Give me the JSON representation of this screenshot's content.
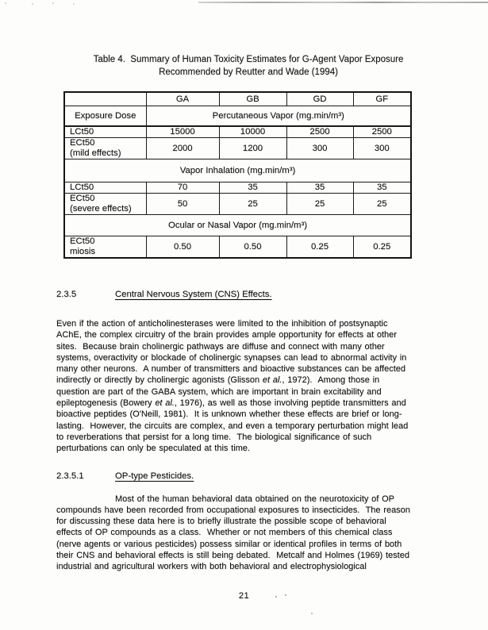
{
  "document": {
    "page_number": "21",
    "table": {
      "title": {
        "line1": "Table 4.  Summary of Human Toxicity Estimates for G-Agent Vapor Exposure",
        "line2": "Recommended by Reutter and Wade (1994)"
      },
      "corner_label": "",
      "agent_columns": [
        "GA",
        "GB",
        "GD",
        "GF"
      ],
      "row_header_label": "Exposure Dose",
      "sections": [
        {
          "span_header": "Percutaneous Vapor (mg.min/m³)",
          "rows": [
            {
              "label": "LCt50",
              "values": [
                "15000",
                "10000",
                "2500",
                "2500"
              ]
            },
            {
              "label": "ECt50\n(mild effects)",
              "values": [
                "2000",
                "1200",
                "300",
                "300"
              ]
            }
          ]
        },
        {
          "span_header": "Vapor Inhalation (mg.min/m³)",
          "rows": [
            {
              "label": "LCt50",
              "values": [
                "70",
                "35",
                "35",
                "35"
              ]
            },
            {
              "label": "ECt50\n(severe effects)",
              "values": [
                "50",
                "25",
                "25",
                "25"
              ]
            }
          ]
        },
        {
          "span_header": "Ocular or Nasal Vapor (mg.min/m³)",
          "rows": [
            {
              "label": "ECt50\nmiosis",
              "values": [
                "0.50",
                "0.50",
                "0.25",
                "0.25"
              ]
            }
          ]
        }
      ]
    },
    "sections": [
      {
        "number": "2.3.5",
        "heading": "Central Nervous System (CNS) Effects.",
        "paragraph": [
          {
            "text": "Even if the action of anticholinesterases were limited to the inhibition of postsynaptic\nAChE, the complex circuitry of the brain provides ample opportunity for effects at other\nsites.  Because brain cholinergic pathways are diffuse and connect with many other\nsystems, overactivity or blockade of cholinergic synapses can lead to abnormal activity in\nmany other neurons.  A number of transmitters and bioactive substances can be affected\nindirectly or directly by cholinergic agonists (Glisson "
          },
          {
            "text": "et al.",
            "italic": true
          },
          {
            "text": ", 1972).  Among those in\nquestion are part of the GABA system, which are important in brain excitability and\nepileptogenesis (Bowery "
          },
          {
            "text": "et al.",
            "italic": true
          },
          {
            "text": ", 1976), as well as those involving peptide transmitters and\nbioactive peptides (O'Neill, 1981).  It is unknown whether these effects are brief or long-\nlasting.  However, the circuits are complex, and even a temporary perturbation might lead\nto reverberations that persist for a long time.  The biological significance of such\nperturbations can only be speculated at this time."
          }
        ]
      },
      {
        "number": "2.3.5.1",
        "heading": "OP-type Pesticides.",
        "paragraph": [
          {
            "text": "Most of the human behavioral data obtained on the neurotoxicity of OP\ncompounds have been recorded from occupational exposures to insecticides.  The reason\nfor discussing these data here is to briefly illustrate the possible scope of behavioral\neffects of OP compounds as a class.  Whether or not members of this chemical class\n(nerve agents or various pesticides) possess similar or identical profiles in terms of both\ntheir CNS and behavioral effects is still being debated.  Metcalf and Holmes (1969) tested\nindustrial and agricultural workers with both behavioral and electrophysiological"
          }
        ]
      }
    ]
  }
}
